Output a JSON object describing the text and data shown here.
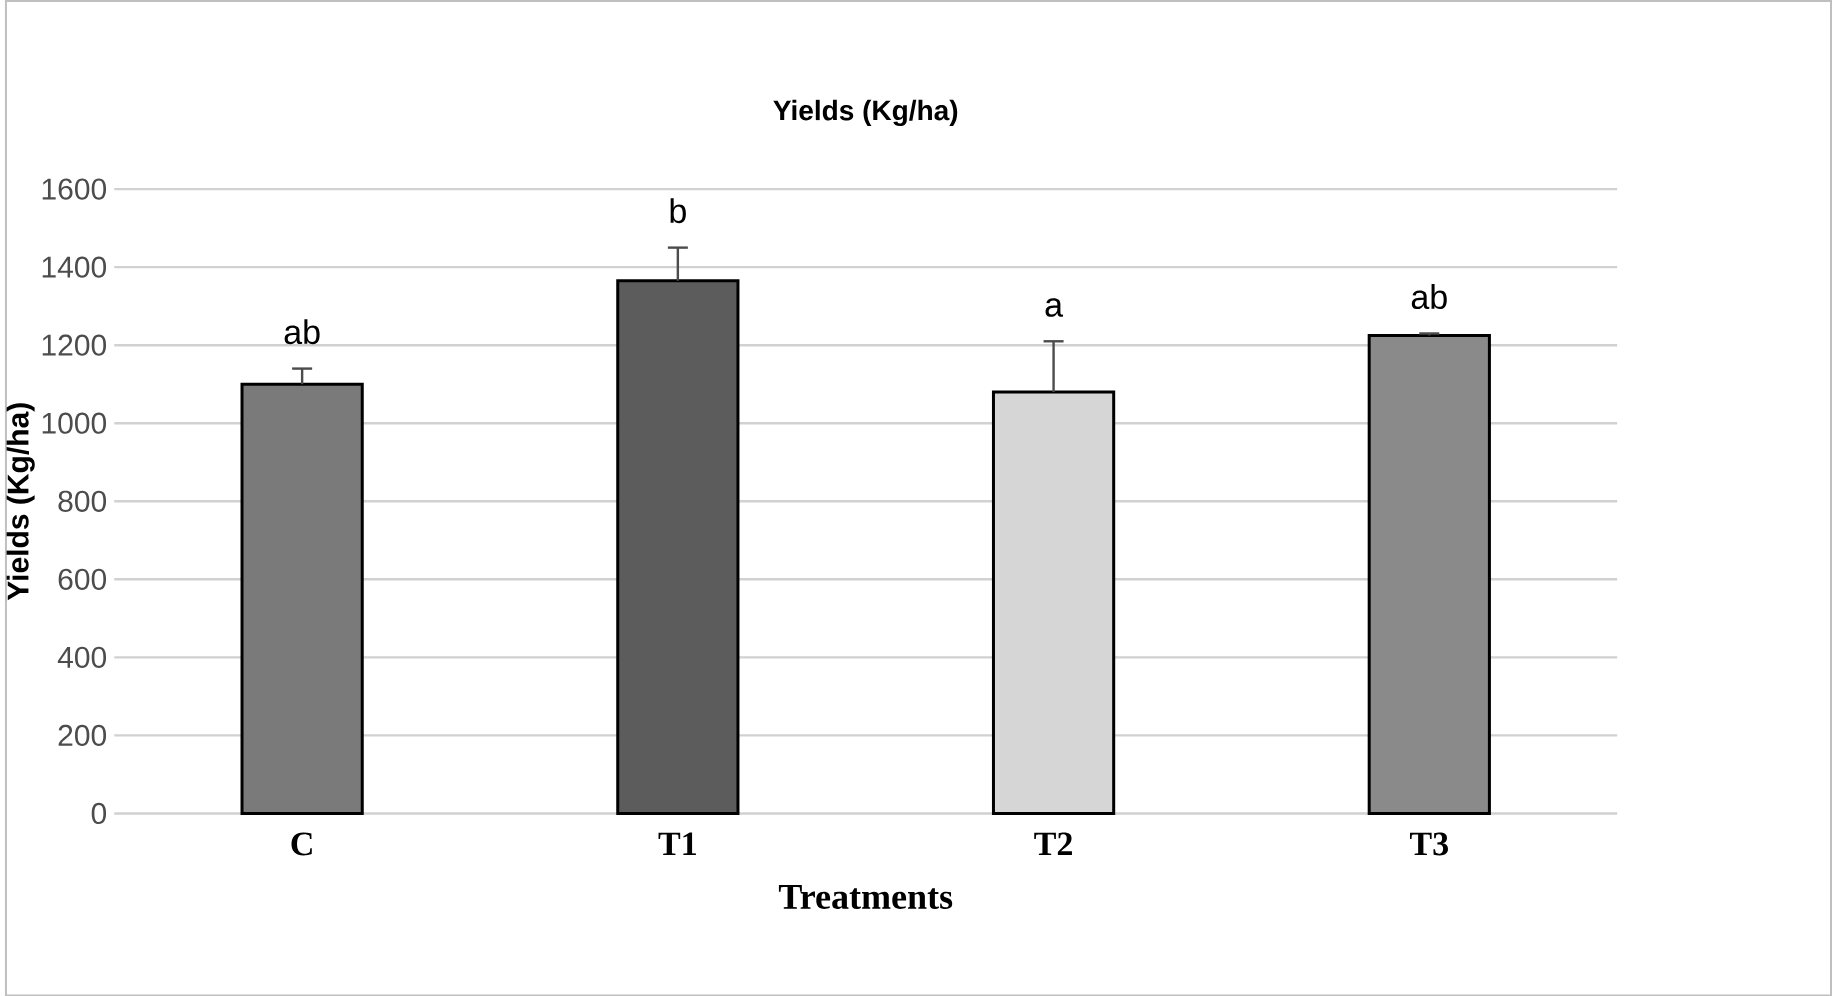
{
  "chart_data": {
    "type": "bar",
    "title": "Yields (Kg/ha)",
    "xlabel": "Treatments",
    "ylabel": "Yields (Kg/ha)",
    "categories": [
      "C",
      "T1",
      "T2",
      "T3"
    ],
    "values": [
      1100,
      1365,
      1080,
      1225
    ],
    "errors": [
      40,
      85,
      130,
      5
    ],
    "colors": [
      "#7a7a7a",
      "#5c5c5c",
      "#d6d6d6",
      "#8a8a8a"
    ],
    "ylim": [
      0,
      1600
    ],
    "yticks": [
      0,
      200,
      400,
      600,
      800,
      1000,
      1200,
      1400,
      1600
    ],
    "grid": "y",
    "annotations": [
      "ab",
      "b",
      "a",
      "ab"
    ]
  }
}
